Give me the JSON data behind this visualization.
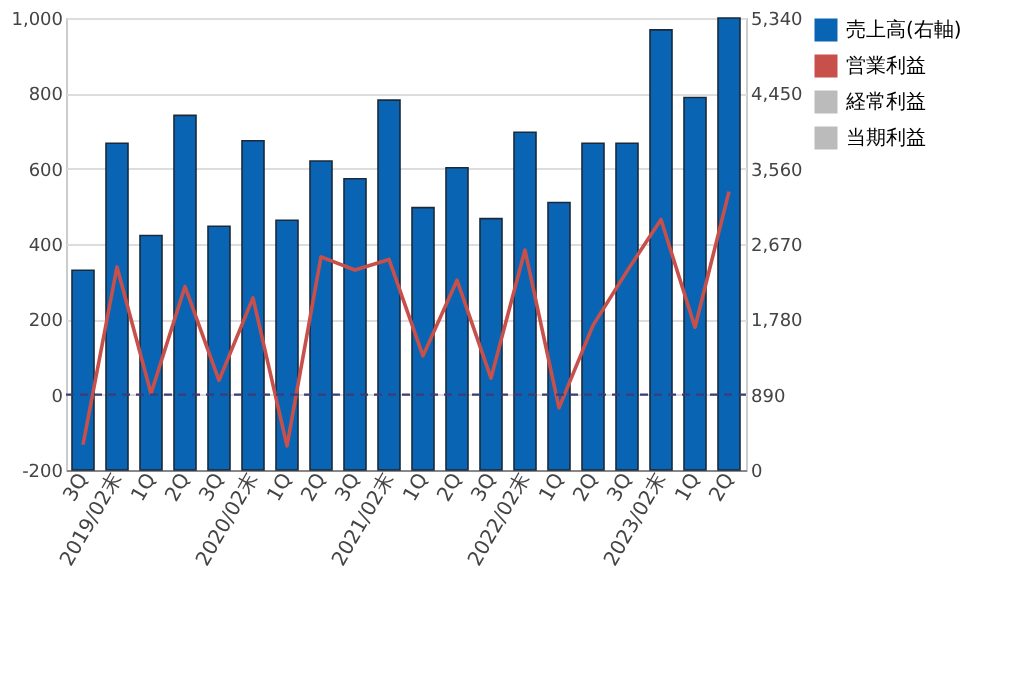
{
  "chart_data": {
    "type": "bar",
    "categories": [
      "3Q",
      "2019/02末",
      "1Q",
      "2Q",
      "3Q",
      "2020/02末",
      "1Q",
      "2Q",
      "3Q",
      "2021/02末",
      "1Q",
      "2Q",
      "3Q",
      "2022/02末",
      "1Q",
      "2Q",
      "3Q",
      "2023/02末",
      "1Q",
      "2Q"
    ],
    "series": [
      {
        "name": "売上高(右軸)",
        "color": "#0a64b4",
        "axis": "y2",
        "values": [
          2360,
          3860,
          2770,
          4190,
          2880,
          3890,
          2950,
          3650,
          3440,
          4370,
          3100,
          3570,
          2970,
          3990,
          3160,
          3860,
          3860,
          5200,
          4400,
          5340
        ]
      },
      {
        "name": "営業利益",
        "color": "#c8504b",
        "type": "line",
        "values": [
          -133,
          339,
          3,
          287,
          38,
          257,
          -136,
          366,
          331,
          359,
          103,
          304,
          44,
          384,
          -35,
          184,
          328,
          465,
          179,
          539
        ]
      },
      {
        "name": "経常利益",
        "color": "#bbbbbb",
        "type": "line",
        "values": [
          null,
          null,
          null,
          null,
          null,
          null,
          null,
          null,
          null,
          null,
          null,
          null,
          null,
          null,
          null,
          null,
          null,
          null,
          null,
          null
        ]
      },
      {
        "name": "当期利益",
        "color": "#bbbbbb",
        "type": "line",
        "values": [
          null,
          null,
          null,
          null,
          null,
          null,
          null,
          null,
          null,
          null,
          null,
          null,
          null,
          null,
          null,
          null,
          null,
          null,
          null,
          null
        ]
      }
    ],
    "ylim": [
      -200,
      1000
    ],
    "yticks": [
      {
        "value": -200,
        "label": "-200"
      },
      {
        "value": 0,
        "label": "0"
      },
      {
        "value": 200,
        "label": "200"
      },
      {
        "value": 400,
        "label": "400"
      },
      {
        "value": 600,
        "label": "600"
      },
      {
        "value": 800,
        "label": "800"
      },
      {
        "value": 1000,
        "label": "1,000"
      }
    ],
    "y2lim": [
      0,
      5340
    ],
    "y2ticks": [
      {
        "value": 0,
        "label": "0"
      },
      {
        "value": 890,
        "label": "890"
      },
      {
        "value": 1780,
        "label": "1,780"
      },
      {
        "value": 2670,
        "label": "2,670"
      },
      {
        "value": 3560,
        "label": "3,560"
      },
      {
        "value": 4450,
        "label": "4,450"
      },
      {
        "value": 5340,
        "label": "5,340"
      }
    ],
    "ref_lines": [
      {
        "axis": "y",
        "value": 0,
        "color": "#3c3c78",
        "line_style": "dashed"
      }
    ],
    "grid": "y",
    "legend": "right"
  }
}
